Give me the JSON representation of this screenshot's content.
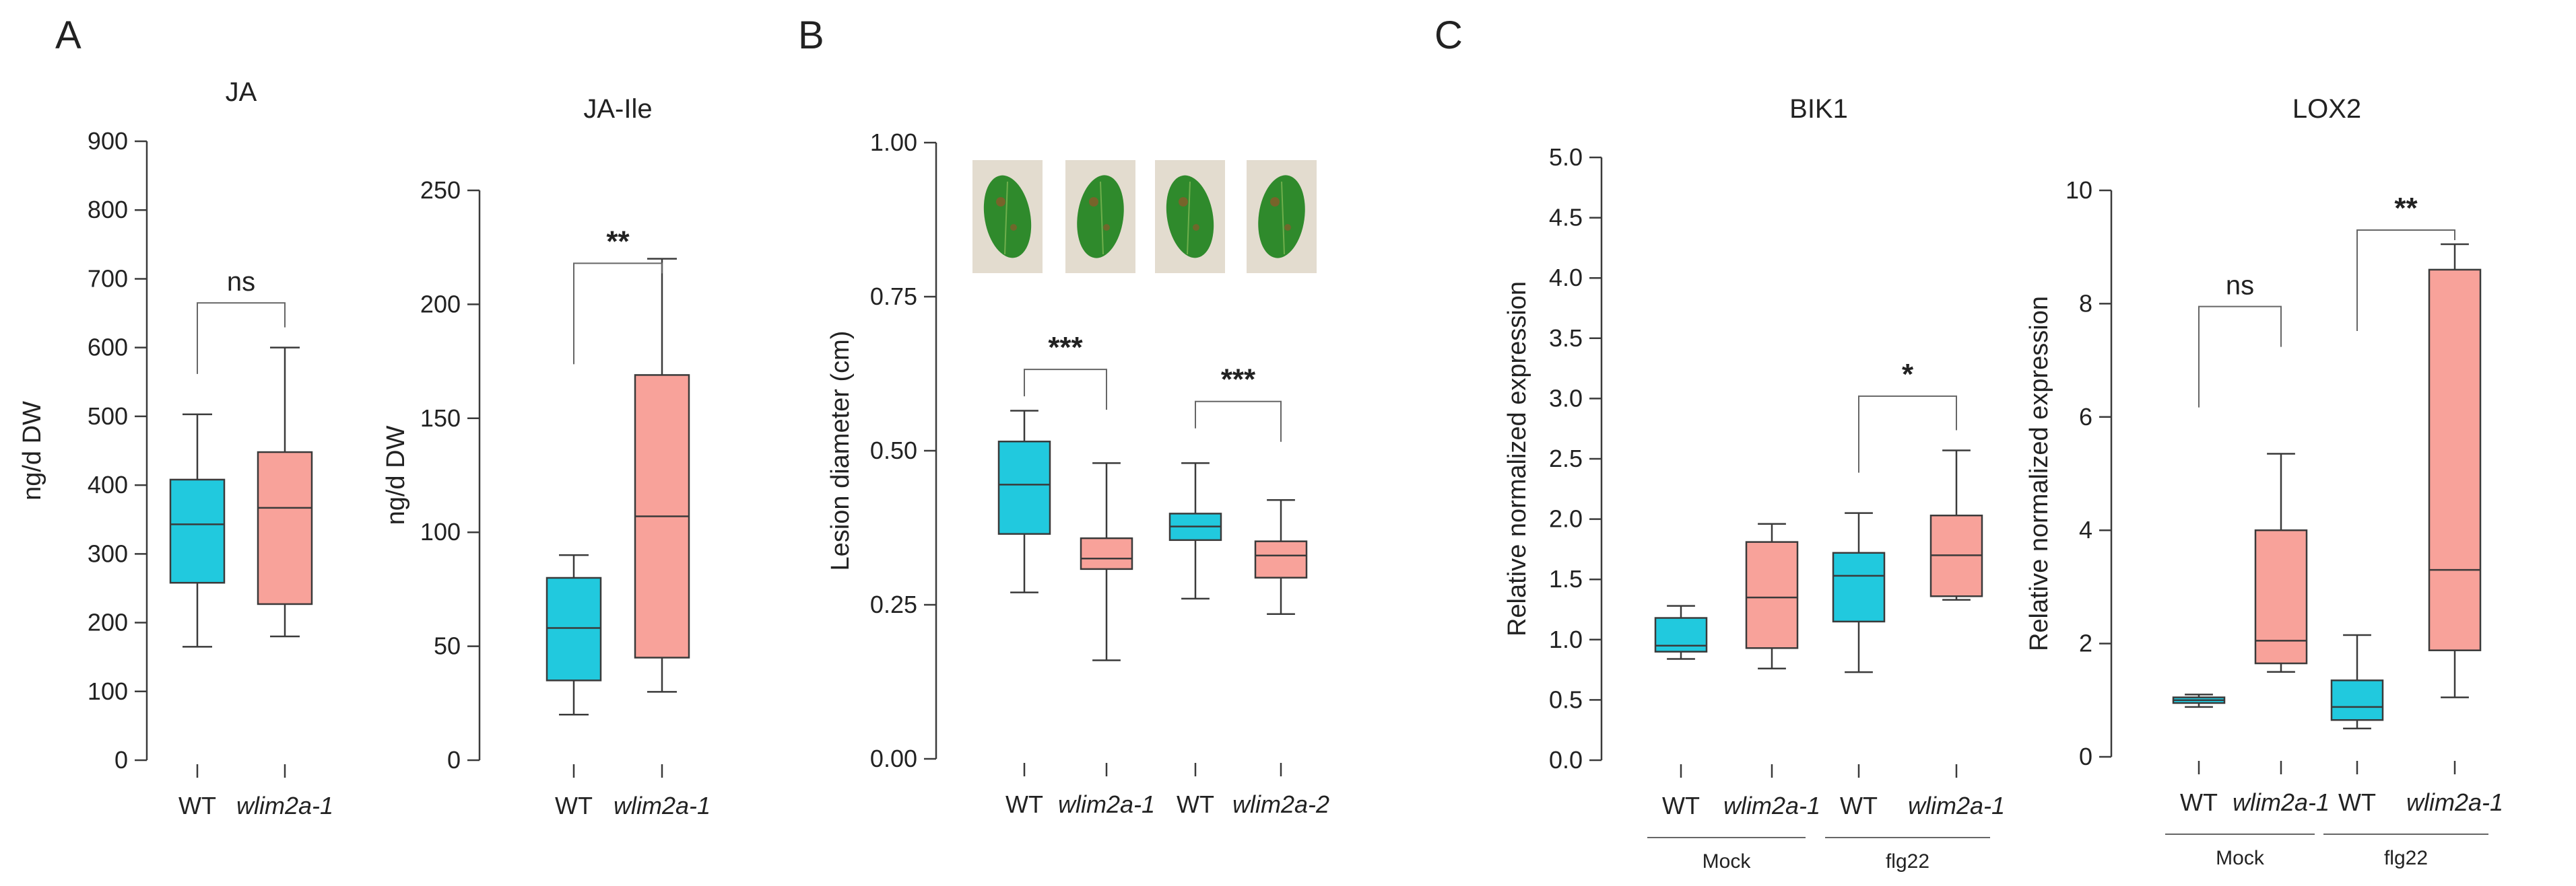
{
  "panels": [
    "A",
    "B",
    "C"
  ],
  "colors": {
    "wt": "#21C9DE",
    "mutant": "#F8A29A",
    "stroke": "#3a3a3a"
  },
  "chart_data": [
    {
      "id": "ja",
      "type": "box",
      "title": "JA",
      "ylabel": "ng/d DW",
      "ylim": [
        0,
        900
      ],
      "yticks": [
        0,
        100,
        200,
        300,
        400,
        500,
        600,
        700,
        800,
        900
      ],
      "boxes": [
        {
          "label": "WT",
          "italic": false,
          "group": "wt",
          "min": 165,
          "q1": 258,
          "median": 343,
          "q3": 408,
          "max": 503
        },
        {
          "label": "wlim2a-1",
          "italic": true,
          "group": "mutant",
          "min": 180,
          "q1": 227,
          "median": 367,
          "q3": 448,
          "max": 600
        }
      ],
      "sig": [
        {
          "pair": [
            0,
            1
          ],
          "text": "ns",
          "y": 665
        }
      ]
    },
    {
      "id": "jaile",
      "type": "box",
      "title": "JA-Ile",
      "ylabel": "ng/d DW",
      "ylim": [
        0,
        250
      ],
      "yticks": [
        0,
        50,
        100,
        150,
        200,
        250
      ],
      "boxes": [
        {
          "label": "WT",
          "italic": false,
          "group": "wt",
          "min": 20,
          "q1": 35,
          "median": 58,
          "q3": 80,
          "max": 90
        },
        {
          "label": "wlim2a-1",
          "italic": true,
          "group": "mutant",
          "min": 30,
          "q1": 45,
          "median": 107,
          "q3": 169,
          "max": 220
        }
      ],
      "sig": [
        {
          "pair": [
            0,
            1
          ],
          "text": "**",
          "y": 218
        }
      ]
    },
    {
      "id": "lesion",
      "type": "box",
      "title": "",
      "ylabel": "Lesion diameter (cm)",
      "ylim": [
        0,
        1
      ],
      "yticks": [
        0,
        0.25,
        0.5,
        0.75,
        1.0
      ],
      "ytick_labels": [
        "0.00",
        "0.25",
        "0.50",
        "0.75",
        "1.00"
      ],
      "boxes": [
        {
          "label": "WT",
          "italic": false,
          "group": "wt",
          "min": 0.27,
          "q1": 0.365,
          "median": 0.445,
          "q3": 0.515,
          "max": 0.565
        },
        {
          "label": "wlim2a-1",
          "italic": true,
          "group": "mutant",
          "min": 0.16,
          "q1": 0.308,
          "median": 0.325,
          "q3": 0.358,
          "max": 0.48
        },
        {
          "label": "WT",
          "italic": false,
          "group": "wt",
          "min": 0.26,
          "q1": 0.355,
          "median": 0.377,
          "q3": 0.398,
          "max": 0.48
        },
        {
          "label": "wlim2a-2",
          "italic": true,
          "group": "mutant",
          "min": 0.235,
          "q1": 0.294,
          "median": 0.33,
          "q3": 0.353,
          "max": 0.42
        }
      ],
      "sig": [
        {
          "pair": [
            0,
            1
          ],
          "text": "***",
          "y": 0.632
        },
        {
          "pair": [
            2,
            3
          ],
          "text": "***",
          "y": 0.58
        }
      ],
      "images": 4
    },
    {
      "id": "bik1",
      "type": "box",
      "title": "BIK1",
      "ylabel": "Relative normalized expression",
      "ylim": [
        0,
        5
      ],
      "yticks": [
        0,
        0.5,
        1,
        1.5,
        2,
        2.5,
        3,
        3.5,
        4,
        4.5,
        5
      ],
      "ytick_labels": [
        "0.0",
        "0.5",
        "1.0",
        "1.5",
        "2.0",
        "2.5",
        "3.0",
        "3.5",
        "4.0",
        "4.5",
        "5.0"
      ],
      "boxes": [
        {
          "label": "WT",
          "italic": false,
          "group": "wt",
          "min": 0.84,
          "q1": 0.9,
          "median": 0.95,
          "q3": 1.18,
          "max": 1.28
        },
        {
          "label": "wlim2a-1",
          "italic": true,
          "group": "mutant",
          "min": 0.76,
          "q1": 0.93,
          "median": 1.35,
          "q3": 1.81,
          "max": 1.96
        },
        {
          "label": "WT",
          "italic": false,
          "group": "wt",
          "min": 0.73,
          "q1": 1.15,
          "median": 1.53,
          "q3": 1.72,
          "max": 2.05
        },
        {
          "label": "wlim2a-1",
          "italic": true,
          "group": "mutant",
          "min": 1.33,
          "q1": 1.36,
          "median": 1.7,
          "q3": 2.03,
          "max": 2.57
        }
      ],
      "sig": [
        {
          "pair": [
            2,
            3
          ],
          "text": "*",
          "y": 3.02
        }
      ],
      "groups": [
        {
          "label": "Mock",
          "from": 0,
          "to": 1
        },
        {
          "label": "flg22",
          "from": 2,
          "to": 3
        }
      ]
    },
    {
      "id": "lox2",
      "type": "box",
      "title": "LOX2",
      "ylabel": "Relative normalized expression",
      "ylim": [
        0,
        10
      ],
      "yticks": [
        0,
        2,
        4,
        6,
        8,
        10
      ],
      "boxes": [
        {
          "label": "WT",
          "italic": false,
          "group": "wt",
          "min": 0.88,
          "q1": 0.95,
          "median": 1.0,
          "q3": 1.05,
          "max": 1.1
        },
        {
          "label": "wlim2a-1",
          "italic": true,
          "group": "mutant",
          "min": 1.5,
          "q1": 1.65,
          "median": 2.05,
          "q3": 4.0,
          "max": 5.35
        },
        {
          "label": "WT",
          "italic": false,
          "group": "wt",
          "min": 0.5,
          "q1": 0.65,
          "median": 0.88,
          "q3": 1.35,
          "max": 2.15
        },
        {
          "label": "wlim2a-1",
          "italic": true,
          "group": "mutant",
          "min": 1.05,
          "q1": 1.88,
          "median": 3.3,
          "q3": 8.6,
          "max": 9.05
        }
      ],
      "sig": [
        {
          "pair": [
            0,
            1
          ],
          "text": "ns",
          "y": 7.95
        },
        {
          "pair": [
            2,
            3
          ],
          "text": "**",
          "y": 9.3
        }
      ],
      "groups": [
        {
          "label": "Mock",
          "from": 0,
          "to": 1
        },
        {
          "label": "flg22",
          "from": 2,
          "to": 3
        }
      ]
    }
  ]
}
